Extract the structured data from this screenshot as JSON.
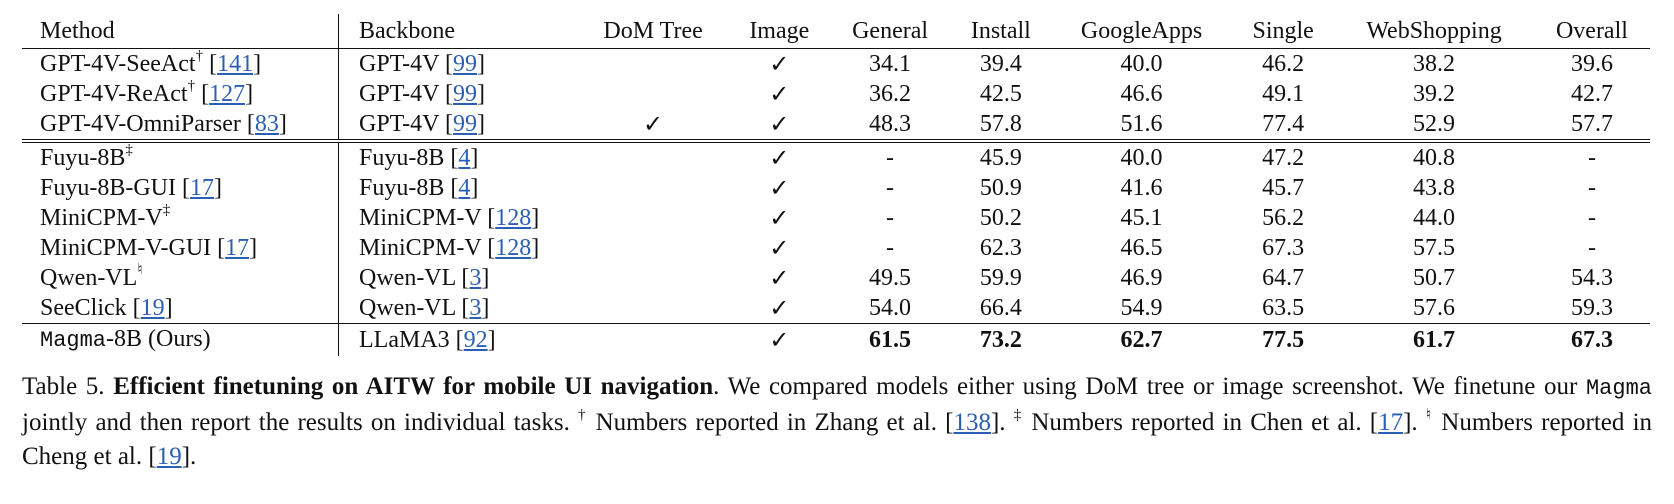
{
  "table": {
    "headers": [
      "Method",
      "Backbone",
      "DoM Tree",
      "Image",
      "General",
      "Install",
      "GoogleApps",
      "Single",
      "WebShopping",
      "Overall"
    ],
    "rows": [
      {
        "method": "GPT-4V-SeeAct",
        "method_sup": "†",
        "method_cite": "141",
        "backbone": "GPT-4V",
        "backbone_cite": "99",
        "dom": "",
        "image": "✓",
        "general": "34.1",
        "install": "39.4",
        "googleapps": "40.0",
        "single": "46.2",
        "webshopping": "38.2",
        "overall": "39.6"
      },
      {
        "method": "GPT-4V-ReAct",
        "method_sup": "†",
        "method_cite": "127",
        "backbone": "GPT-4V",
        "backbone_cite": "99",
        "dom": "",
        "image": "✓",
        "general": "36.2",
        "install": "42.5",
        "googleapps": "46.6",
        "single": "49.1",
        "webshopping": "39.2",
        "overall": "42.7"
      },
      {
        "method": "GPT-4V-OmniParser",
        "method_sup": "",
        "method_cite": "83",
        "backbone": "GPT-4V",
        "backbone_cite": "99",
        "dom": "✓",
        "image": "✓",
        "general": "48.3",
        "install": "57.8",
        "googleapps": "51.6",
        "single": "77.4",
        "webshopping": "52.9",
        "overall": "57.7"
      },
      {
        "method": "Fuyu-8B",
        "method_sup": "‡",
        "method_cite": "",
        "backbone": "Fuyu-8B",
        "backbone_cite": "4",
        "dom": "",
        "image": "✓",
        "general": "-",
        "install": "45.9",
        "googleapps": "40.0",
        "single": "47.2",
        "webshopping": "40.8",
        "overall": "-"
      },
      {
        "method": "Fuyu-8B-GUI",
        "method_sup": "",
        "method_cite": "17",
        "backbone": "Fuyu-8B",
        "backbone_cite": "4",
        "dom": "",
        "image": "✓",
        "general": "-",
        "install": "50.9",
        "googleapps": "41.6",
        "single": "45.7",
        "webshopping": "43.8",
        "overall": "-"
      },
      {
        "method": "MiniCPM-V",
        "method_sup": "‡",
        "method_cite": "",
        "backbone": "MiniCPM-V",
        "backbone_cite": "128",
        "dom": "",
        "image": "✓",
        "general": "-",
        "install": "50.2",
        "googleapps": "45.1",
        "single": "56.2",
        "webshopping": "44.0",
        "overall": "-"
      },
      {
        "method": "MiniCPM-V-GUI",
        "method_sup": "",
        "method_cite": "17",
        "backbone": "MiniCPM-V",
        "backbone_cite": "128",
        "dom": "",
        "image": "✓",
        "general": "-",
        "install": "62.3",
        "googleapps": "46.5",
        "single": "67.3",
        "webshopping": "57.5",
        "overall": "-"
      },
      {
        "method": "Qwen-VL",
        "method_sup": "♮",
        "method_cite": "",
        "backbone": "Qwen-VL",
        "backbone_cite": "3",
        "dom": "",
        "image": "✓",
        "general": "49.5",
        "install": "59.9",
        "googleapps": "46.9",
        "single": "64.7",
        "webshopping": "50.7",
        "overall": "54.3"
      },
      {
        "method": "SeeClick",
        "method_sup": "",
        "method_cite": "19",
        "backbone": "Qwen-VL",
        "backbone_cite": "3",
        "dom": "",
        "image": "✓",
        "general": "54.0",
        "install": "66.4",
        "googleapps": "54.9",
        "single": "63.5",
        "webshopping": "57.6",
        "overall": "59.3"
      }
    ],
    "ours": {
      "method_mono": "Magma",
      "method_rest": "-8B (Ours)",
      "backbone": "LLaMA3",
      "backbone_cite": "92",
      "dom": "",
      "image": "✓",
      "general": "61.5",
      "install": "73.2",
      "googleapps": "62.7",
      "single": "77.5",
      "webshopping": "61.7",
      "overall": "67.3"
    }
  },
  "caption": {
    "label": "Table 5.",
    "title": "Efficient finetuning on AITW for mobile UI navigation",
    "text1": ". We compared models either using DoM tree or image screenshot. We finetune our ",
    "mono": "Magma",
    "text2": " jointly and then report the results on individual tasks. ",
    "dagger": "†",
    "text3": " Numbers reported in Zhang et al. [",
    "cite1": "138",
    "text4": "]. ",
    "ddagger": "‡",
    "text5": " Numbers reported in Chen et al. [",
    "cite2": "17",
    "text6": "]. ",
    "natural": "♮",
    "text7": " Numbers reported in Cheng et al. [",
    "cite3": "19",
    "text8": "]."
  }
}
